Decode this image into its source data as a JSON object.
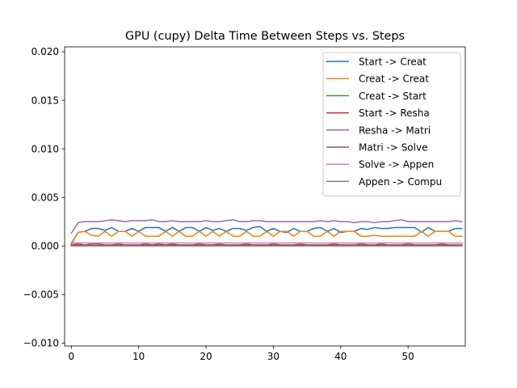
{
  "chart_data": {
    "type": "line",
    "title": "GPU (cupy) Delta Time Between Steps vs. Steps",
    "xlabel": "",
    "ylabel": "",
    "xlim": [
      -1,
      58.5
    ],
    "ylim": [
      -0.0103,
      0.0205
    ],
    "x_ticks": [
      0,
      10,
      20,
      30,
      40,
      50
    ],
    "y_ticks": [
      -0.01,
      -0.005,
      0.0,
      0.005,
      0.01,
      0.015,
      0.02
    ],
    "y_tick_labels": [
      "−0.010",
      "−0.005",
      "0.000",
      "0.005",
      "0.010",
      "0.015",
      "0.020"
    ],
    "grid": false,
    "legend_position": "top-right",
    "x": [
      0,
      1,
      2,
      3,
      4,
      5,
      6,
      7,
      8,
      9,
      10,
      11,
      12,
      13,
      14,
      15,
      16,
      17,
      18,
      19,
      20,
      21,
      22,
      23,
      24,
      25,
      26,
      27,
      28,
      29,
      30,
      31,
      32,
      33,
      34,
      35,
      36,
      37,
      38,
      39,
      40,
      41,
      42,
      43,
      44,
      45,
      46,
      47,
      48,
      49,
      50,
      51,
      52,
      53,
      54,
      55,
      56,
      57,
      58
    ],
    "series": [
      {
        "name": "Start -> Creat",
        "color": "#1f77b4",
        "values": [
          0.0002,
          0.0014,
          0.0015,
          0.0018,
          0.0018,
          0.0016,
          0.0019,
          0.0015,
          0.0015,
          0.0018,
          0.0015,
          0.0019,
          0.0019,
          0.0019,
          0.0015,
          0.0019,
          0.0015,
          0.0019,
          0.0019,
          0.0015,
          0.0019,
          0.0016,
          0.0018,
          0.0015,
          0.0018,
          0.0018,
          0.0016,
          0.0019,
          0.002,
          0.0015,
          0.0018,
          0.0015,
          0.0014,
          0.0018,
          0.0015,
          0.0015,
          0.0018,
          0.0019,
          0.0015,
          0.0018,
          0.0014,
          0.0015,
          0.0015,
          0.0018,
          0.0017,
          0.0019,
          0.0018,
          0.0018,
          0.0019,
          0.0019,
          0.0019,
          0.0019,
          0.0014,
          0.0019,
          0.0015,
          0.0015,
          0.0015,
          0.0018,
          0.0018
        ]
      },
      {
        "name": "Creat -> Creat",
        "color": "#ff7f0e",
        "values": [
          0.0003,
          0.0014,
          0.0015,
          0.0011,
          0.001,
          0.0015,
          0.001,
          0.0015,
          0.0015,
          0.001,
          0.0015,
          0.001,
          0.001,
          0.001,
          0.0015,
          0.001,
          0.0015,
          0.001,
          0.001,
          0.0015,
          0.001,
          0.0015,
          0.001,
          0.0015,
          0.001,
          0.001,
          0.0015,
          0.001,
          0.001,
          0.0015,
          0.001,
          0.0015,
          0.0015,
          0.001,
          0.0015,
          0.0015,
          0.001,
          0.001,
          0.0015,
          0.001,
          0.0015,
          0.0015,
          0.0015,
          0.001,
          0.001,
          0.0011,
          0.001,
          0.001,
          0.001,
          0.001,
          0.001,
          0.001,
          0.0015,
          0.001,
          0.0015,
          0.0015,
          0.0015,
          0.001,
          0.001
        ]
      },
      {
        "name": "Creat -> Start",
        "color": "#2ca02c",
        "values": [
          2e-05,
          2e-05,
          2e-05,
          2e-05,
          2e-05,
          2e-05,
          2e-05,
          2e-05,
          2e-05,
          2e-05,
          2e-05,
          2e-05,
          2e-05,
          2e-05,
          2e-05,
          2e-05,
          2e-05,
          2e-05,
          2e-05,
          2e-05,
          2e-05,
          2e-05,
          2e-05,
          2e-05,
          2e-05,
          2e-05,
          2e-05,
          2e-05,
          2e-05,
          2e-05,
          2e-05,
          2e-05,
          2e-05,
          2e-05,
          2e-05,
          2e-05,
          2e-05,
          2e-05,
          2e-05,
          2e-05,
          2e-05,
          2e-05,
          2e-05,
          2e-05,
          2e-05,
          2e-05,
          2e-05,
          2e-05,
          2e-05,
          2e-05,
          2e-05,
          2e-05,
          2e-05,
          2e-05,
          2e-05,
          2e-05,
          2e-05,
          2e-05,
          2e-05
        ]
      },
      {
        "name": "Start -> Resha",
        "color": "#d62728",
        "values": [
          0.0001,
          0.0002,
          0.0001,
          0.0002,
          0.0002,
          0.0001,
          0.0001,
          0.0002,
          0.0001,
          0.0001,
          0.0001,
          0.0002,
          0.0001,
          0.0002,
          0.0001,
          0.0002,
          0.0001,
          0.0001,
          0.0001,
          0.0002,
          0.0001,
          0.0001,
          0.0002,
          0.0001,
          0.0001,
          0.0001,
          0.0002,
          0.0001,
          0.0001,
          0.0001,
          0.0002,
          0.0001,
          0.0001,
          0.0001,
          0.0002,
          0.0001,
          0.0001,
          0.0001,
          0.0001,
          0.0002,
          0.0001,
          0.0001,
          0.0001,
          0.0002,
          0.0001,
          0.0001,
          0.0002,
          0.0001,
          0.0001,
          0.0001,
          0.0002,
          0.0001,
          0.0001,
          0.0001,
          0.0001,
          0.0002,
          0.0001,
          0.0001,
          0.0001
        ]
      },
      {
        "name": "Resha -> Matri",
        "color": "#9467bd",
        "values": [
          0.0013,
          0.0024,
          0.0025,
          0.0025,
          0.0025,
          0.0026,
          0.0027,
          0.0026,
          0.0025,
          0.0026,
          0.0026,
          0.0026,
          0.0027,
          0.0025,
          0.0025,
          0.0026,
          0.0025,
          0.0025,
          0.0025,
          0.0025,
          0.0026,
          0.0025,
          0.0025,
          0.0026,
          0.0027,
          0.0025,
          0.0025,
          0.0026,
          0.0026,
          0.0025,
          0.0025,
          0.0025,
          0.0025,
          0.0025,
          0.0025,
          0.0025,
          0.0025,
          0.0026,
          0.0025,
          0.0026,
          0.0025,
          0.0025,
          0.0024,
          0.0025,
          0.0025,
          0.0024,
          0.0025,
          0.0025,
          0.0026,
          0.0027,
          0.0025,
          0.0025,
          0.0025,
          0.0025,
          0.0025,
          0.0025,
          0.0025,
          0.0026,
          0.0025
        ]
      },
      {
        "name": "Matri -> Solve",
        "color": "#8c564b",
        "values": [
          5e-05,
          5e-05,
          5e-05,
          5e-05,
          5e-05,
          5e-05,
          5e-05,
          5e-05,
          5e-05,
          5e-05,
          5e-05,
          5e-05,
          5e-05,
          5e-05,
          5e-05,
          5e-05,
          5e-05,
          5e-05,
          5e-05,
          5e-05,
          5e-05,
          5e-05,
          5e-05,
          5e-05,
          5e-05,
          5e-05,
          5e-05,
          5e-05,
          5e-05,
          5e-05,
          5e-05,
          5e-05,
          5e-05,
          5e-05,
          5e-05,
          5e-05,
          5e-05,
          5e-05,
          5e-05,
          5e-05,
          5e-05,
          5e-05,
          5e-05,
          5e-05,
          5e-05,
          5e-05,
          5e-05,
          5e-05,
          5e-05,
          5e-05,
          5e-05,
          5e-05,
          5e-05,
          5e-05,
          5e-05,
          5e-05,
          5e-05,
          5e-05,
          5e-05
        ]
      },
      {
        "name": "Solve -> Appen",
        "color": "#e377c2",
        "values": [
          0.0003,
          0.0003,
          0.0003,
          0.0003,
          0.0003,
          0.0003,
          0.0003,
          0.0003,
          0.0003,
          0.0003,
          0.0003,
          0.0003,
          0.0003,
          0.0003,
          0.0003,
          0.0003,
          0.0003,
          0.0003,
          0.0003,
          0.0003,
          0.0003,
          0.0003,
          0.0003,
          0.0003,
          0.0003,
          0.0003,
          0.0003,
          0.0003,
          0.0003,
          0.0003,
          0.0003,
          0.0003,
          0.0003,
          0.0003,
          0.0003,
          0.0003,
          0.0003,
          0.0003,
          0.0003,
          0.0003,
          0.0003,
          0.0003,
          0.0003,
          0.0003,
          0.0003,
          0.0003,
          0.0003,
          0.0003,
          0.0003,
          0.0003,
          0.0003,
          0.0003,
          0.0003,
          0.0003,
          0.0003,
          0.0003,
          0.0003,
          0.0003,
          0.0003
        ]
      },
      {
        "name": "Appen -> Compu",
        "color": "#7f7f7f",
        "values": [
          1e-05,
          1e-05,
          1e-05,
          1e-05,
          1e-05,
          1e-05,
          1e-05,
          1e-05,
          1e-05,
          1e-05,
          1e-05,
          1e-05,
          1e-05,
          1e-05,
          1e-05,
          1e-05,
          1e-05,
          1e-05,
          1e-05,
          1e-05,
          1e-05,
          1e-05,
          1e-05,
          1e-05,
          1e-05,
          1e-05,
          1e-05,
          1e-05,
          1e-05,
          1e-05,
          1e-05,
          1e-05,
          1e-05,
          1e-05,
          1e-05,
          1e-05,
          1e-05,
          1e-05,
          1e-05,
          1e-05,
          1e-05,
          1e-05,
          1e-05,
          1e-05,
          1e-05,
          1e-05,
          1e-05,
          1e-05,
          1e-05,
          1e-05,
          1e-05,
          1e-05,
          1e-05,
          1e-05,
          1e-05,
          1e-05,
          1e-05,
          1e-05,
          1e-05
        ]
      }
    ]
  }
}
